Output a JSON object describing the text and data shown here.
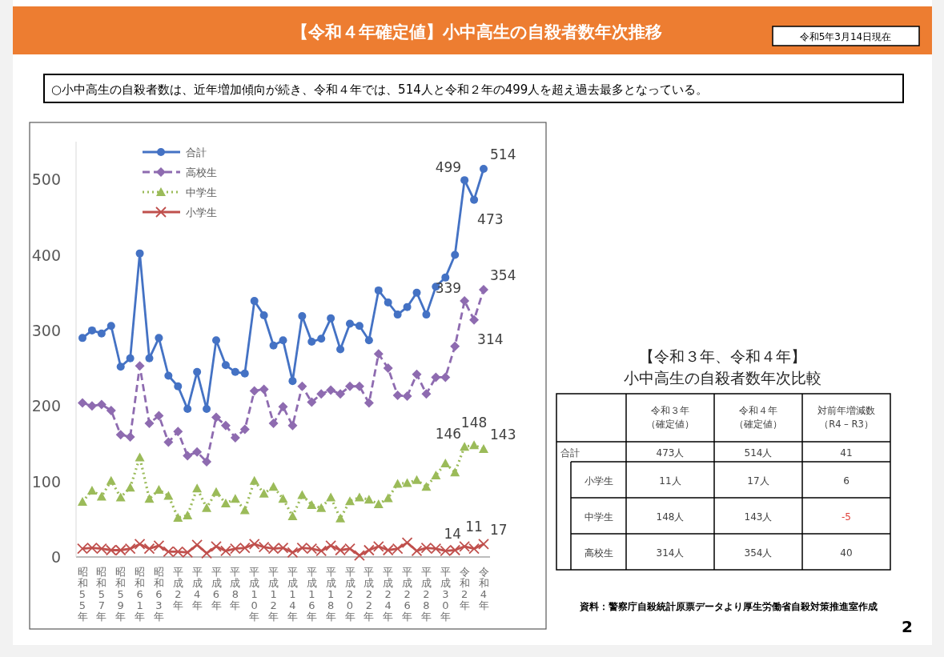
{
  "chart_data": [
    {
      "type": "line",
      "title": "【令和４年確定値】小中高生の自殺者数年次推移",
      "subtitle": "○小中高生の自殺者数は、近年増加傾向が続き、令和４年では、514人と令和２年の499人を超え過去最多となっている。",
      "annotations": [
        "令和5年3月14日現在",
        "資料：警察庁自殺統計原票データより厚生労働省自殺対策推進室作成",
        "2"
      ],
      "categories": [
        "昭和55年",
        null,
        "昭和57年",
        null,
        "昭和59年",
        null,
        "昭和61年",
        null,
        "昭和63年",
        null,
        "平成2年",
        null,
        "平成4年",
        null,
        "平成6年",
        null,
        "平成8年",
        null,
        "平成10年",
        null,
        "平成12年",
        null,
        "平成14年",
        null,
        "平成16年",
        null,
        "平成18年",
        null,
        "平成20年",
        null,
        "平成22年",
        null,
        "平成24年",
        null,
        "平成26年",
        null,
        "平成28年",
        null,
        "平成30年",
        null,
        "令和2年",
        null,
        "令和4年"
      ],
      "ylim": [
        0,
        550
      ],
      "yticks": [
        0,
        100,
        200,
        300,
        400,
        500
      ],
      "grid": false,
      "legend": "top left",
      "series": [
        {
          "name": "合計",
          "color": "#4472c4",
          "marker": "circle",
          "line_style": "solid",
          "values": [
            290,
            300,
            296,
            306,
            252,
            263,
            402,
            263,
            290,
            240,
            226,
            196,
            245,
            196,
            287,
            254,
            245,
            243,
            339,
            320,
            280,
            287,
            233,
            319,
            285,
            289,
            316,
            275,
            309,
            306,
            287,
            353,
            337,
            321,
            331,
            350,
            321,
            358,
            370,
            400,
            499,
            473,
            514
          ],
          "value_labels": [
            null,
            null,
            null,
            null,
            null,
            null,
            null,
            null,
            null,
            null,
            null,
            null,
            null,
            null,
            null,
            null,
            null,
            null,
            null,
            null,
            null,
            null,
            null,
            null,
            null,
            null,
            null,
            null,
            null,
            null,
            null,
            null,
            null,
            null,
            null,
            null,
            null,
            null,
            null,
            null,
            "499",
            "473",
            "514"
          ]
        },
        {
          "name": "高校生",
          "color": "#8e6bb0",
          "marker": "diamond",
          "line_style": "dashed",
          "values": [
            204,
            200,
            202,
            194,
            162,
            159,
            253,
            177,
            187,
            152,
            166,
            134,
            139,
            126,
            185,
            174,
            158,
            169,
            220,
            222,
            177,
            199,
            174,
            226,
            205,
            216,
            221,
            216,
            226,
            226,
            204,
            269,
            250,
            214,
            213,
            242,
            216,
            238,
            238,
            279,
            339,
            314,
            354
          ],
          "value_labels": [
            null,
            null,
            null,
            null,
            null,
            null,
            null,
            null,
            null,
            null,
            null,
            null,
            null,
            null,
            null,
            null,
            null,
            null,
            null,
            null,
            null,
            null,
            null,
            null,
            null,
            null,
            null,
            null,
            null,
            null,
            null,
            null,
            null,
            null,
            null,
            null,
            null,
            null,
            null,
            null,
            "339",
            "314",
            "354"
          ]
        },
        {
          "name": "中学生",
          "color": "#9bbb59",
          "marker": "triangle",
          "line_style": "dotted",
          "values": [
            73,
            88,
            80,
            101,
            79,
            92,
            132,
            77,
            89,
            81,
            52,
            55,
            91,
            65,
            86,
            71,
            77,
            62,
            101,
            84,
            93,
            77,
            54,
            82,
            69,
            65,
            79,
            51,
            74,
            79,
            76,
            70,
            78,
            97,
            98,
            102,
            93,
            108,
            124,
            112,
            146,
            148,
            143
          ],
          "value_labels": [
            null,
            null,
            null,
            null,
            null,
            null,
            null,
            null,
            null,
            null,
            null,
            null,
            null,
            null,
            null,
            null,
            null,
            null,
            null,
            null,
            null,
            null,
            null,
            null,
            null,
            null,
            null,
            null,
            null,
            null,
            null,
            null,
            null,
            null,
            null,
            null,
            null,
            null,
            null,
            null,
            "146",
            "148",
            "143"
          ]
        },
        {
          "name": "小学生",
          "color": "#c0504d",
          "marker": "cross",
          "line_style": "solid",
          "values": [
            11,
            12,
            11,
            9,
            9,
            11,
            17,
            11,
            15,
            7,
            7,
            6,
            16,
            5,
            14,
            8,
            11,
            12,
            17,
            13,
            11,
            12,
            6,
            12,
            11,
            8,
            15,
            9,
            11,
            2,
            9,
            14,
            9,
            11,
            19,
            8,
            12,
            11,
            8,
            9,
            14,
            11,
            17
          ],
          "value_labels": [
            null,
            null,
            null,
            null,
            null,
            null,
            null,
            null,
            null,
            null,
            null,
            null,
            null,
            null,
            null,
            null,
            null,
            null,
            null,
            null,
            null,
            null,
            null,
            null,
            null,
            null,
            null,
            null,
            null,
            null,
            null,
            null,
            null,
            null,
            null,
            null,
            null,
            null,
            null,
            null,
            "14",
            "11",
            "17"
          ]
        }
      ]
    },
    {
      "type": "other",
      "title": "【令和３年、令和４年】",
      "subtitle": "小中高生の自殺者数年次比較",
      "annotations": [
        "令和３年（確定値）",
        "令和４年（確定値）",
        "対前年増減数（R4 – R3）",
        "合計",
        "473人",
        "514人",
        "41",
        "小学生",
        "11人",
        "17人",
        "6",
        "中学生",
        "148人",
        "143人",
        "-5",
        "高校生",
        "314人",
        "354人",
        "40"
      ]
    }
  ]
}
